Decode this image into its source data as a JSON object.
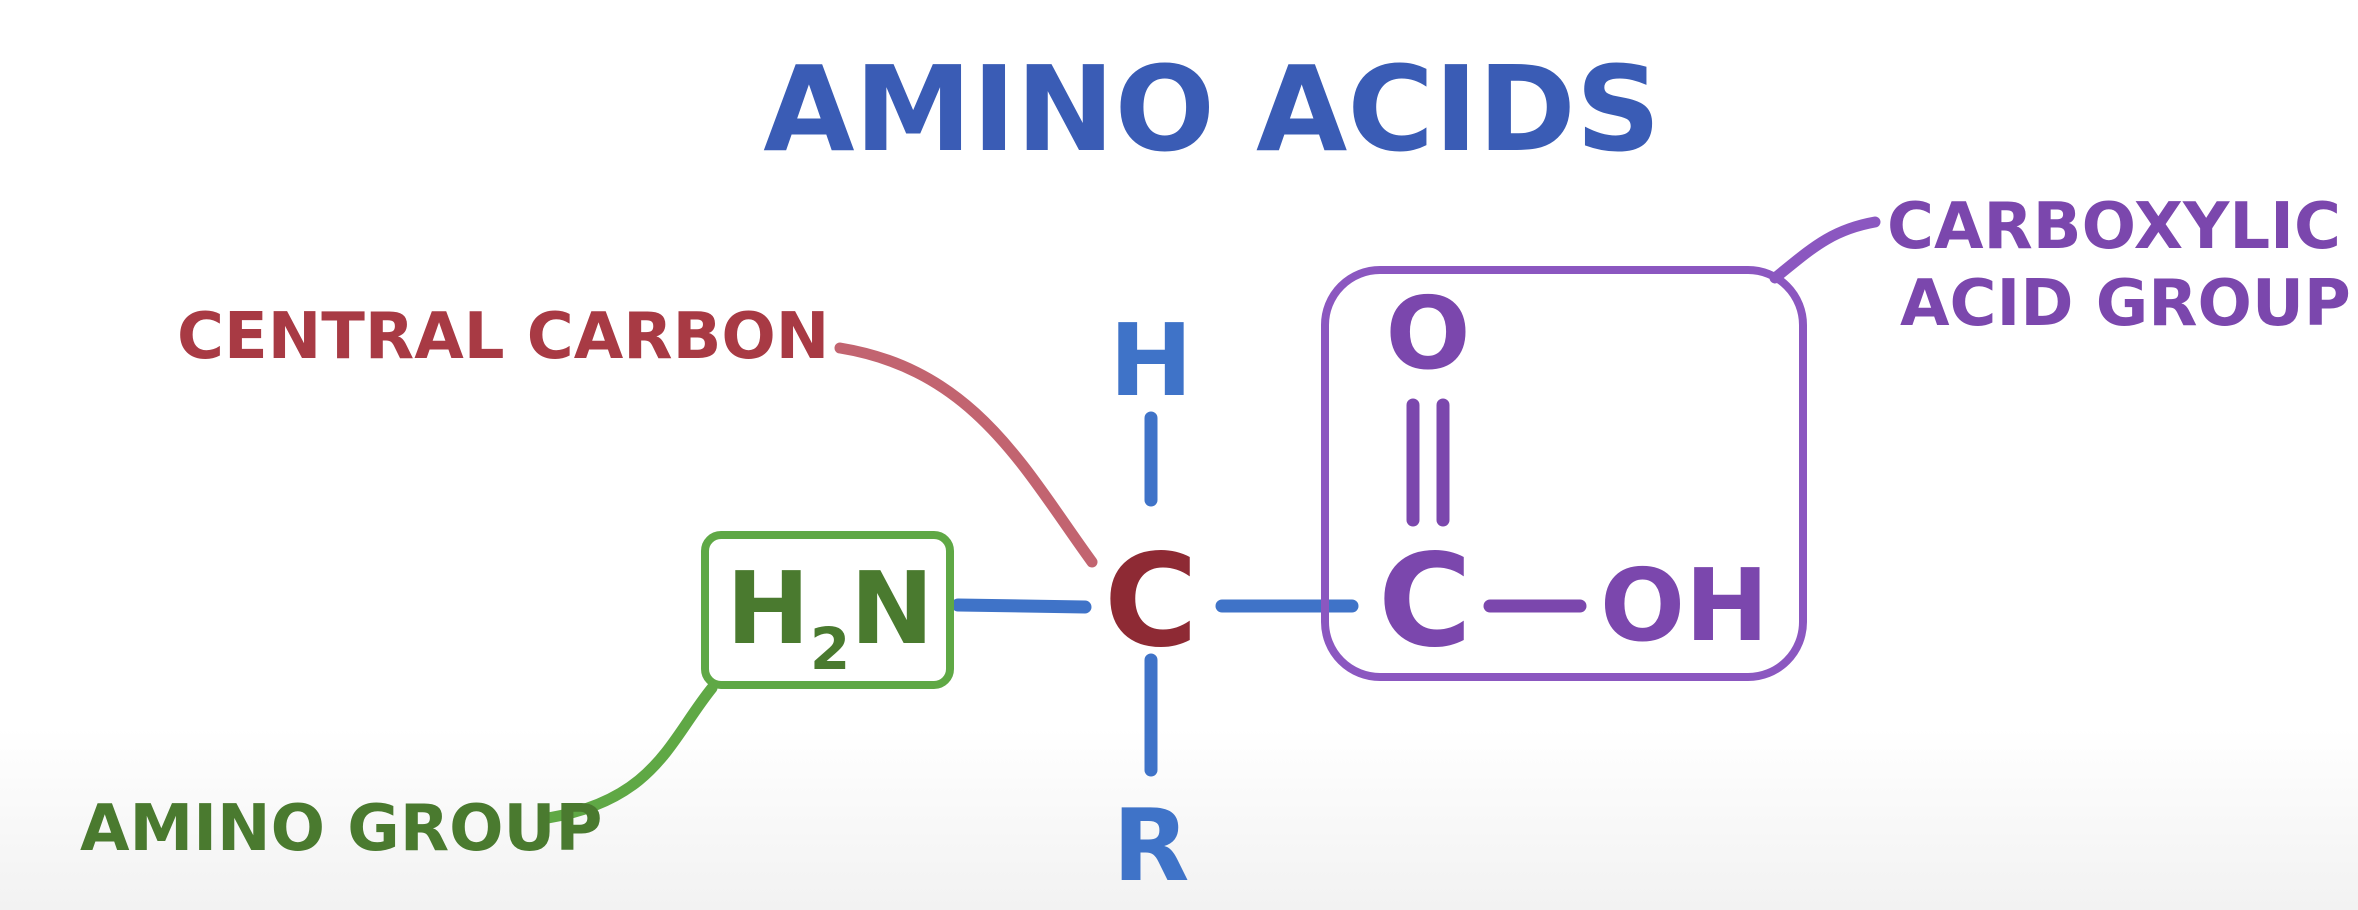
{
  "title": "AMINO ACIDS",
  "colors": {
    "title": "#3a5cb5",
    "backbone": "#3f73c8",
    "central": "#8e2a34",
    "central_label": "#a83a44",
    "amino": "#4a7a2f",
    "amino_line": "#5fa845",
    "carboxyl": "#7b47ad",
    "carboxyl_line": "#8b57c0"
  },
  "labels": {
    "central_carbon": "CENTRAL CARBON",
    "amino_group": "AMINO GROUP",
    "carboxylic_line1": "CARBOXYLIC",
    "carboxylic_line2": "ACID GROUP"
  },
  "atoms": {
    "central_c": "C",
    "h": "H",
    "r": "R",
    "amine_h": "H",
    "amine_sub": "2",
    "amine_n": "N",
    "carbonyl_o": "O",
    "carboxyl_c": "C",
    "hydroxyl": "OH"
  }
}
